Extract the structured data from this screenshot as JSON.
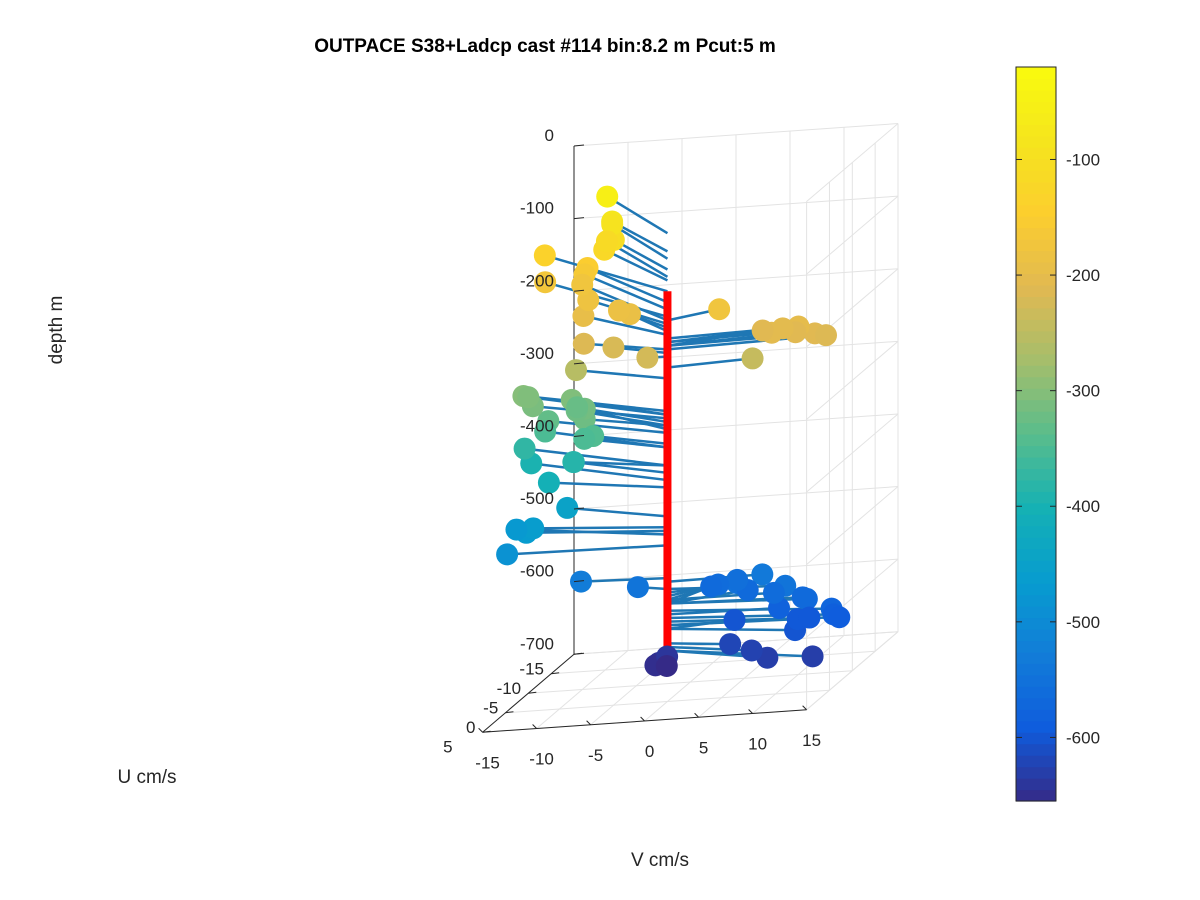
{
  "chart_data": {
    "type": "scatter",
    "title": "OUTPACE S38+Ladcp cast #114 bin:8.2 m  Pcut:5 m",
    "xlabel": "V cm/s",
    "ylabel": "U cm/s",
    "zlabel": "depth m",
    "xlim": [
      -15,
      15
    ],
    "ylim": [
      -15,
      5
    ],
    "zlim": [
      -700,
      0
    ],
    "xticks": [
      -15,
      -10,
      -5,
      0,
      5,
      10,
      15
    ],
    "yticks": [
      -15,
      -10,
      -5,
      0,
      5
    ],
    "zticks": [
      0,
      -100,
      -200,
      -300,
      -400,
      -500,
      -600,
      -700
    ],
    "grid": true,
    "colorbar": {
      "label_ticks": [
        -100,
        -200,
        -300,
        -400,
        -500,
        -600
      ],
      "clim": [
        -655,
        -20
      ],
      "colormap": "parula"
    },
    "reference_line": {
      "color": "#ff0000",
      "depth_range": [
        -135,
        -660
      ]
    },
    "stem_color": "#1f77b4",
    "points": [
      {
        "v": -10.4,
        "u": -11.4,
        "depth": -55
      },
      {
        "v": -9.1,
        "u": -9.4,
        "depth": -80
      },
      {
        "v": -9.6,
        "u": -10.6,
        "depth": -90
      },
      {
        "v": -8.9,
        "u": -9.3,
        "depth": -105
      },
      {
        "v": -10.3,
        "u": -11.1,
        "depth": -115
      },
      {
        "v": -10.0,
        "u": -9.8,
        "depth": -120
      },
      {
        "v": -16.6,
        "u": -12.4,
        "depth": -135
      },
      {
        "v": -12.1,
        "u": -11.1,
        "depth": -150
      },
      {
        "v": -12.5,
        "u": -11.4,
        "depth": -160
      },
      {
        "v": -16.4,
        "u": -12.0,
        "depth": -170
      },
      {
        "v": -12.8,
        "u": -11.6,
        "depth": -175
      },
      {
        "v": 3.9,
        "u": -2.1,
        "depth": -175
      },
      {
        "v": -10.8,
        "u": -8.2,
        "depth": -180
      },
      {
        "v": -6.9,
        "u": -5.7,
        "depth": -185
      },
      {
        "v": -5.8,
        "u": -5.5,
        "depth": -190
      },
      {
        "v": -10.7,
        "u": -6.9,
        "depth": -195
      },
      {
        "v": 11.8,
        "u": -0.8,
        "depth": -200
      },
      {
        "v": 9.4,
        "u": -0.6,
        "depth": -205
      },
      {
        "v": 10.0,
        "u": -1.6,
        "depth": -205
      },
      {
        "v": 11.3,
        "u": -1.3,
        "depth": -210
      },
      {
        "v": 7.8,
        "u": -2.4,
        "depth": -210
      },
      {
        "v": 13.4,
        "u": -0.6,
        "depth": -210
      },
      {
        "v": 14.3,
        "u": -0.9,
        "depth": -215
      },
      {
        "v": -9.1,
        "u": -3.2,
        "depth": -215
      },
      {
        "v": -6.1,
        "u": -2.6,
        "depth": -220
      },
      {
        "v": -1.9,
        "u": -0.1,
        "depth": -225
      },
      {
        "v": 7.5,
        "u": -0.9,
        "depth": -240
      },
      {
        "v": -10.2,
        "u": -4.1,
        "depth": -255
      },
      {
        "v": -16.3,
        "u": -7.0,
        "depth": -300
      },
      {
        "v": -16.1,
        "u": -7.6,
        "depth": -305
      },
      {
        "v": -11.4,
        "u": -6.0,
        "depth": -305
      },
      {
        "v": -15.0,
        "u": -6.0,
        "depth": -310
      },
      {
        "v": -9.9,
        "u": -5.3,
        "depth": -315
      },
      {
        "v": -9.1,
        "u": -3.4,
        "depth": -320
      },
      {
        "v": -10.9,
        "u": -5.9,
        "depth": -320
      },
      {
        "v": -11.7,
        "u": -7.9,
        "depth": -325
      },
      {
        "v": -13.4,
        "u": -5.6,
        "depth": -330
      },
      {
        "v": -8.4,
        "u": -3.6,
        "depth": -345
      },
      {
        "v": -9.4,
        "u": -4.0,
        "depth": -350
      },
      {
        "v": -14.2,
        "u": -6.8,
        "depth": -350
      },
      {
        "v": -16.4,
        "u": -7.5,
        "depth": -375
      },
      {
        "v": -9.9,
        "u": -2.8,
        "depth": -375
      },
      {
        "v": -10.7,
        "u": -4.8,
        "depth": -385
      },
      {
        "v": -15.7,
        "u": -7.3,
        "depth": -395
      },
      {
        "v": -12.5,
        "u": -3.6,
        "depth": -405
      },
      {
        "v": -11.1,
        "u": -4.3,
        "depth": -445
      },
      {
        "v": -13.4,
        "u": -2.3,
        "depth": -460
      },
      {
        "v": -14.0,
        "u": -2.2,
        "depth": -465
      },
      {
        "v": -15.8,
        "u": -4.3,
        "depth": -470
      },
      {
        "v": -15.1,
        "u": -0.6,
        "depth": -485
      },
      {
        "v": -8.3,
        "u": -0.7,
        "depth": -530
      },
      {
        "v": 8.7,
        "u": -0.2,
        "depth": -535
      },
      {
        "v": -3.2,
        "u": -1.1,
        "depth": -545
      },
      {
        "v": 11.5,
        "u": 1.4,
        "depth": -545
      },
      {
        "v": 5.9,
        "u": -1.3,
        "depth": -550
      },
      {
        "v": 5.1,
        "u": -3.2,
        "depth": -555
      },
      {
        "v": 3.3,
        "u": -3.3,
        "depth": -560
      },
      {
        "v": 9.9,
        "u": 0.1,
        "depth": -560
      },
      {
        "v": 2.4,
        "u": -3.9,
        "depth": -565
      },
      {
        "v": 13.5,
        "u": 1.4,
        "depth": -565
      },
      {
        "v": 6.5,
        "u": -2.2,
        "depth": -565
      },
      {
        "v": 12.9,
        "u": 0.9,
        "depth": -565
      },
      {
        "v": 16.3,
        "u": 2.6,
        "depth": -575
      },
      {
        "v": 10.5,
        "u": 0.4,
        "depth": -580
      },
      {
        "v": 16.3,
        "u": 2.2,
        "depth": -585
      },
      {
        "v": 16.8,
        "u": 2.1,
        "depth": -590
      },
      {
        "v": 12.4,
        "u": 0.8,
        "depth": -595
      },
      {
        "v": 13.4,
        "u": 0.6,
        "depth": -595
      },
      {
        "v": 13.0,
        "u": 2.8,
        "depth": -600
      },
      {
        "v": 5.7,
        "u": -1.2,
        "depth": -600
      },
      {
        "v": 6.4,
        "u": 1.4,
        "depth": -620
      },
      {
        "v": 8.9,
        "u": 2.6,
        "depth": -625
      },
      {
        "v": 15.3,
        "u": 4.4,
        "depth": -630
      },
      {
        "v": 10.9,
        "u": 3.9,
        "depth": -630
      },
      {
        "v": -0.2,
        "u": -0.4,
        "depth": -640
      },
      {
        "v": -0.7,
        "u": 0.2,
        "depth": -645
      },
      {
        "v": -1.2,
        "u": -0.2,
        "depth": -650
      },
      {
        "v": -0.4,
        "u": -0.8,
        "depth": -655
      }
    ]
  }
}
